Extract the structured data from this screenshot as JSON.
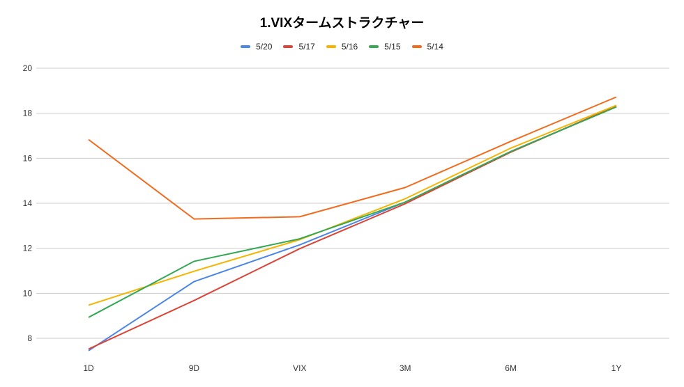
{
  "chart_data": {
    "type": "line",
    "title": "1.VIXタームストラクチャー",
    "categories": [
      "1D",
      "9D",
      "VIX",
      "3M",
      "6M",
      "1Y"
    ],
    "ylim": [
      7.4,
      21
    ],
    "yticks": [
      8,
      10,
      12,
      14,
      16,
      18,
      20
    ],
    "grid": true,
    "legend_position": "top",
    "series": [
      {
        "name": "5/20",
        "color": "#4a86e8",
        "values": [
          7.45,
          10.52,
          12.15,
          14.05,
          16.3,
          18.3
        ]
      },
      {
        "name": "5/17",
        "color": "#db4437",
        "values": [
          7.52,
          9.68,
          11.98,
          13.98,
          16.27,
          18.32
        ]
      },
      {
        "name": "5/16",
        "color": "#f4b400",
        "values": [
          9.47,
          10.98,
          12.38,
          14.2,
          16.45,
          18.35
        ]
      },
      {
        "name": "5/15",
        "color": "#34a853",
        "values": [
          8.93,
          11.42,
          12.42,
          14.05,
          16.3,
          18.28
        ]
      },
      {
        "name": "5/14",
        "color": "#f26b1d",
        "values": [
          16.83,
          13.3,
          13.4,
          14.7,
          16.75,
          18.72
        ]
      }
    ]
  }
}
